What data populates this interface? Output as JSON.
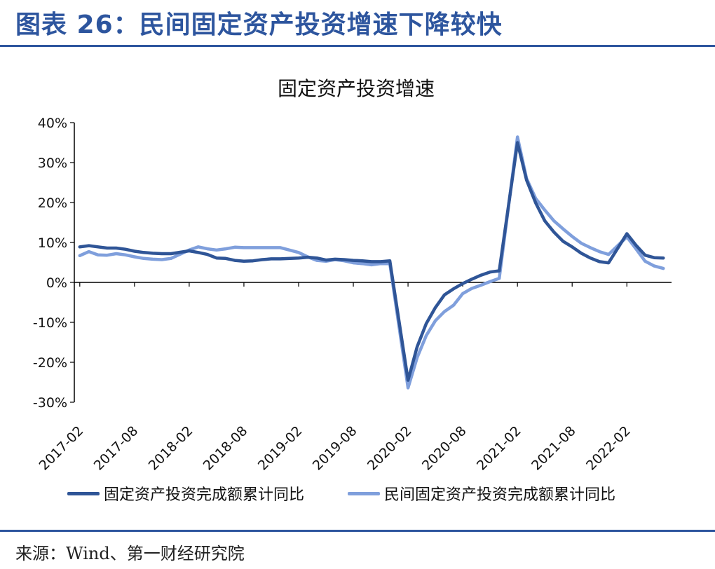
{
  "header": {
    "title": "图表 26：民间固定资产投资增速下降较快"
  },
  "footer": {
    "source": "来源：Wind、第一财经研究院"
  },
  "colors": {
    "brand": "#2d559e",
    "series_total": "#2f5597",
    "series_private": "#7f9fdc"
  },
  "chart_data": {
    "type": "line",
    "title": "固定资产投资增速",
    "xlabel": "",
    "ylabel": "",
    "ylim": [
      -30,
      40
    ],
    "yticks": [
      "40%",
      "30%",
      "20%",
      "10%",
      "0%",
      "-10%",
      "-20%",
      "-30%"
    ],
    "ytick_values": [
      40,
      30,
      20,
      10,
      0,
      -10,
      -20,
      -30
    ],
    "xtick_labels": [
      "2017-02",
      "2017-08",
      "2018-02",
      "2018-08",
      "2019-02",
      "2019-08",
      "2020-02",
      "2020-08",
      "2021-02",
      "2021-08",
      "2022-02"
    ],
    "grid": false,
    "legend_position": "bottom",
    "x": [
      "2017-02",
      "2017-03",
      "2017-04",
      "2017-05",
      "2017-06",
      "2017-07",
      "2017-08",
      "2017-09",
      "2017-10",
      "2017-11",
      "2017-12",
      "2018-02",
      "2018-03",
      "2018-04",
      "2018-05",
      "2018-06",
      "2018-07",
      "2018-08",
      "2018-09",
      "2018-10",
      "2018-11",
      "2018-12",
      "2019-02",
      "2019-03",
      "2019-04",
      "2019-05",
      "2019-06",
      "2019-07",
      "2019-08",
      "2019-09",
      "2019-10",
      "2019-11",
      "2019-12",
      "2020-02",
      "2020-03",
      "2020-04",
      "2020-05",
      "2020-06",
      "2020-07",
      "2020-08",
      "2020-09",
      "2020-10",
      "2020-11",
      "2020-12",
      "2021-02",
      "2021-03",
      "2021-04",
      "2021-05",
      "2021-06",
      "2021-07",
      "2021-08",
      "2021-09",
      "2021-10",
      "2021-11",
      "2021-12",
      "2022-02",
      "2022-03",
      "2022-04",
      "2022-05",
      "2022-06"
    ],
    "series": [
      {
        "name": "固定资产投资完成额累计同比",
        "values": [
          8.9,
          9.2,
          8.9,
          8.6,
          8.6,
          8.3,
          7.8,
          7.5,
          7.3,
          7.2,
          7.2,
          7.9,
          7.5,
          7.0,
          6.1,
          6.0,
          5.5,
          5.3,
          5.4,
          5.7,
          5.9,
          5.9,
          6.1,
          6.3,
          6.1,
          5.6,
          5.8,
          5.7,
          5.5,
          5.4,
          5.2,
          5.2,
          5.4,
          -24.5,
          -16.1,
          -10.3,
          -6.3,
          -3.1,
          -1.6,
          -0.3,
          0.8,
          1.8,
          2.6,
          2.9,
          35.0,
          25.6,
          19.9,
          15.4,
          12.6,
          10.3,
          8.9,
          7.3,
          6.1,
          5.2,
          4.9,
          12.2,
          9.3,
          6.8,
          6.2,
          6.1
        ]
      },
      {
        "name": "民间固定资产投资完成额累计同比",
        "values": [
          6.7,
          7.7,
          6.9,
          6.8,
          7.2,
          6.9,
          6.4,
          6.0,
          5.8,
          5.7,
          6.0,
          8.1,
          8.9,
          8.4,
          8.1,
          8.4,
          8.8,
          8.7,
          8.7,
          8.7,
          8.7,
          8.7,
          7.5,
          6.4,
          5.5,
          5.3,
          5.7,
          5.4,
          4.9,
          4.7,
          4.4,
          4.7,
          4.7,
          -26.4,
          -18.8,
          -13.3,
          -9.6,
          -7.3,
          -5.7,
          -2.8,
          -1.5,
          -0.7,
          0.2,
          1.0,
          36.4,
          26.0,
          21.0,
          18.1,
          15.4,
          13.4,
          11.5,
          9.8,
          8.7,
          7.7,
          7.0,
          11.4,
          8.4,
          5.3,
          4.1,
          3.5
        ]
      }
    ]
  }
}
